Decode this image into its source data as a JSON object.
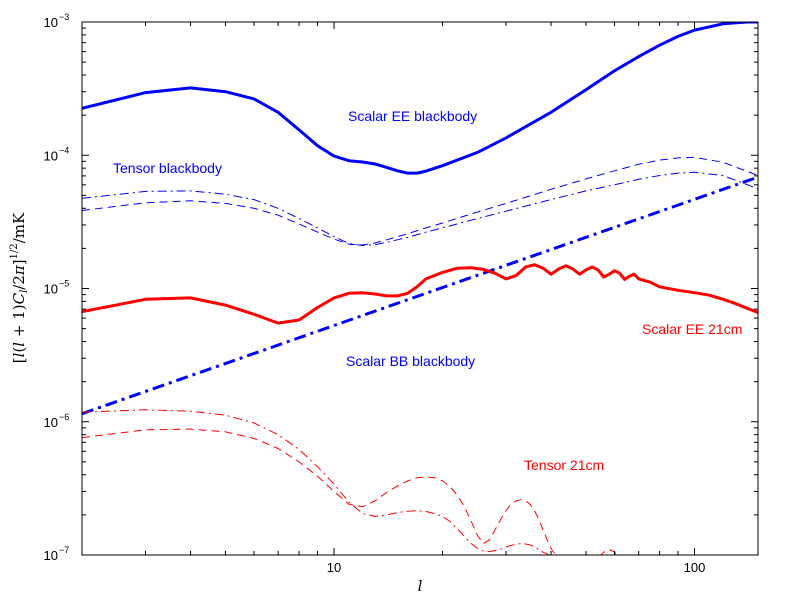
{
  "chart_data": {
    "type": "line",
    "xscale": "log",
    "yscale": "log",
    "xlim": [
      2,
      150
    ],
    "ylim": [
      1e-07,
      0.001
    ],
    "grid": false,
    "legend": "none",
    "xlabel": "l",
    "ylabel": "[l(l+1)C_l/2π]^{1/2}/mK",
    "xticks": [
      {
        "value": 10,
        "label": "10"
      },
      {
        "value": 100,
        "label": "100"
      }
    ],
    "yticks": [
      {
        "value": 1e-07,
        "base": "10",
        "exp": "−7"
      },
      {
        "value": 1e-06,
        "base": "10",
        "exp": "−6"
      },
      {
        "value": 1e-05,
        "base": "10",
        "exp": "−5"
      },
      {
        "value": 0.0001,
        "base": "10",
        "exp": "−4"
      },
      {
        "value": 0.001,
        "base": "10",
        "exp": "−3"
      }
    ],
    "series": [
      {
        "color": "#0000ff",
        "style": "solid",
        "width": 3,
        "x": [
          2,
          3,
          4,
          5,
          6,
          7,
          8,
          9,
          10,
          11,
          12,
          13,
          14,
          15,
          16,
          17,
          18,
          20,
          25,
          30,
          40,
          50,
          60,
          70,
          80,
          90,
          100,
          120,
          140,
          150
        ],
        "y": [
          0.000225,
          0.000295,
          0.00032,
          0.0003,
          0.000265,
          0.00021,
          0.000155,
          0.000118,
          9.85e-05,
          9.1e-05,
          8.9e-05,
          8.6e-05,
          8.1e-05,
          7.65e-05,
          7.35e-05,
          7.35e-05,
          7.6e-05,
          8.35e-05,
          0.000105,
          0.000135,
          0.00021,
          0.00031,
          0.00043,
          0.00055,
          0.00067,
          0.00078,
          0.00087,
          0.00097,
          0.001,
          0.001
        ]
      },
      {
        "color": "#0000ff",
        "style": "dashed",
        "width": 1,
        "x": [
          2,
          3,
          4,
          5,
          6,
          7,
          8,
          9,
          10,
          11,
          12,
          13,
          14,
          16,
          18,
          20,
          25,
          30,
          40,
          50,
          60,
          70,
          80,
          90,
          100,
          120,
          150
        ],
        "y": [
          3.85e-05,
          4.4e-05,
          4.55e-05,
          4.35e-05,
          4e-05,
          3.55e-05,
          3.05e-05,
          2.65e-05,
          2.35e-05,
          2.15e-05,
          2.12e-05,
          2.2e-05,
          2.32e-05,
          2.58e-05,
          2.85e-05,
          3.1e-05,
          3.75e-05,
          4.35e-05,
          5.55e-05,
          6.65e-05,
          7.65e-05,
          8.55e-05,
          9.2e-05,
          9.55e-05,
          9.65e-05,
          8.85e-05,
          7.05e-05
        ]
      },
      {
        "color": "#0000ff",
        "style": "dashdot",
        "width": 1,
        "x": [
          2,
          3,
          4,
          5,
          6,
          7,
          8,
          9,
          10,
          11,
          12,
          13,
          14,
          16,
          18,
          20,
          25,
          30,
          40,
          50,
          60,
          70,
          80,
          90,
          100,
          120,
          150
        ],
        "y": [
          4.75e-05,
          5.35e-05,
          5.4e-05,
          5.1e-05,
          4.65e-05,
          4e-05,
          3.35e-05,
          2.85e-05,
          2.45e-05,
          2.18e-05,
          2.1e-05,
          2.13e-05,
          2.22e-05,
          2.42e-05,
          2.65e-05,
          2.85e-05,
          3.35e-05,
          3.8e-05,
          4.65e-05,
          5.4e-05,
          6e-05,
          6.6e-05,
          7.05e-05,
          7.35e-05,
          7.45e-05,
          7.05e-05,
          5.6e-05
        ]
      },
      {
        "color": "#0000ff",
        "style": "dashdot",
        "width": 3,
        "x": [
          2,
          150
        ],
        "y": [
          1.15e-06,
          6.85e-05
        ]
      },
      {
        "color": "#ff0000",
        "style": "solid",
        "width": 3,
        "x": [
          2,
          3,
          4,
          5,
          6,
          7,
          8,
          9,
          10,
          11,
          12,
          13,
          14,
          15,
          16,
          17,
          18,
          20,
          22,
          24,
          26,
          28,
          30,
          32,
          34,
          36,
          38,
          40,
          42,
          44,
          46,
          48,
          50,
          52,
          54,
          56,
          58,
          60,
          62,
          64,
          66,
          68,
          70,
          75,
          80,
          90,
          100,
          110,
          120,
          130,
          140,
          150
        ],
        "y": [
          6.7e-06,
          8.3e-06,
          8.5e-06,
          7.5e-06,
          6.4e-06,
          5.5e-06,
          5.8e-06,
          7.2e-06,
          8.5e-06,
          9.2e-06,
          9.3e-06,
          9.1e-06,
          8.8e-06,
          8.8e-06,
          9.2e-06,
          1.03e-05,
          1.18e-05,
          1.32e-05,
          1.42e-05,
          1.43e-05,
          1.39e-05,
          1.3e-05,
          1.18e-05,
          1.25e-05,
          1.45e-05,
          1.51e-05,
          1.42e-05,
          1.28e-05,
          1.4e-05,
          1.48e-05,
          1.4e-05,
          1.28e-05,
          1.38e-05,
          1.45e-05,
          1.38e-05,
          1.22e-05,
          1.28e-05,
          1.36e-05,
          1.3e-05,
          1.17e-05,
          1.24e-05,
          1.28e-05,
          1.18e-05,
          1.12e-05,
          1.03e-05,
          9.7e-06,
          9.3e-06,
          8.9e-06,
          8.3e-06,
          7.7e-06,
          7.1e-06,
          6.6e-06
        ]
      },
      {
        "color": "#ff0000",
        "style": "dashed",
        "width": 1,
        "x": [
          2,
          3,
          4,
          5,
          6,
          7,
          8,
          9,
          10,
          11,
          12,
          13,
          14,
          15,
          16,
          17,
          18,
          19,
          20,
          21,
          22,
          23,
          24,
          25,
          26,
          27,
          28,
          29,
          30,
          31,
          32,
          33,
          34,
          35,
          36,
          37,
          38,
          39,
          40,
          41,
          42,
          44,
          46,
          48,
          50,
          52,
          54,
          56,
          58,
          60,
          62
        ],
        "y": [
          7.6e-07,
          8.7e-07,
          8.8e-07,
          8.4e-07,
          7.5e-07,
          6.3e-07,
          5e-07,
          3.9e-07,
          3e-07,
          2.4e-07,
          2.3e-07,
          2.55e-07,
          2.95e-07,
          3.3e-07,
          3.6e-07,
          3.8e-07,
          3.85e-07,
          3.8e-07,
          3.6e-07,
          3.25e-07,
          2.8e-07,
          2.3e-07,
          1.8e-07,
          1.4e-07,
          1.22e-07,
          1.3e-07,
          1.55e-07,
          1.85e-07,
          2.15e-07,
          2.4e-07,
          2.55e-07,
          2.6e-07,
          2.55e-07,
          2.4e-07,
          2.15e-07,
          1.85e-07,
          1.55e-07,
          1.3e-07,
          1.12e-07,
          1.02e-07,
          9.5e-08,
          9e-08,
          8.5e-08,
          8e-08,
          7.5e-08,
          8e-08,
          9.5e-08,
          1.05e-07,
          1.1e-07,
          1.05e-07,
          9.5e-08
        ]
      },
      {
        "color": "#ff0000",
        "style": "dashdot",
        "width": 1,
        "x": [
          2,
          3,
          4,
          5,
          6,
          7,
          8,
          9,
          10,
          11,
          12,
          13,
          14,
          15,
          16,
          17,
          18,
          19,
          20,
          21,
          22,
          23,
          24,
          25,
          26,
          27,
          28,
          29,
          30,
          31,
          32,
          33,
          34,
          35,
          36,
          37,
          38,
          39,
          40,
          42,
          45,
          50,
          55,
          60,
          65,
          70
        ],
        "y": [
          1.18e-06,
          1.23e-06,
          1.2e-06,
          1.12e-06,
          9.8e-07,
          8e-07,
          6.2e-07,
          4.6e-07,
          3.4e-07,
          2.5e-07,
          2.05e-07,
          1.95e-07,
          2e-07,
          2.08e-07,
          2.13e-07,
          2.15e-07,
          2.12e-07,
          2.05e-07,
          1.95e-07,
          1.78e-07,
          1.57e-07,
          1.38e-07,
          1.22e-07,
          1.12e-07,
          1.07e-07,
          1.06e-07,
          1.08e-07,
          1.11e-07,
          1.15e-07,
          1.18e-07,
          1.2e-07,
          1.22e-07,
          1.21e-07,
          1.19e-07,
          1.15e-07,
          1.1e-07,
          1.05e-07,
          1.02e-07,
          9.8e-08,
          9.5e-08,
          9.2e-08,
          8.8e-08,
          8.5e-08,
          8.2e-08,
          8e-08,
          7.8e-08
        ]
      }
    ],
    "annotations": [
      {
        "text": "Scalar EE blackbody",
        "color": "#0000ff"
      },
      {
        "text": "Tensor blackbody",
        "color": "#0000ff"
      },
      {
        "text": "Scalar BB blackbody",
        "color": "#0000ff"
      },
      {
        "text": "Scalar EE 21cm",
        "color": "#ff0000"
      },
      {
        "text": "Tensor 21cm",
        "color": "#ff0000"
      }
    ]
  }
}
